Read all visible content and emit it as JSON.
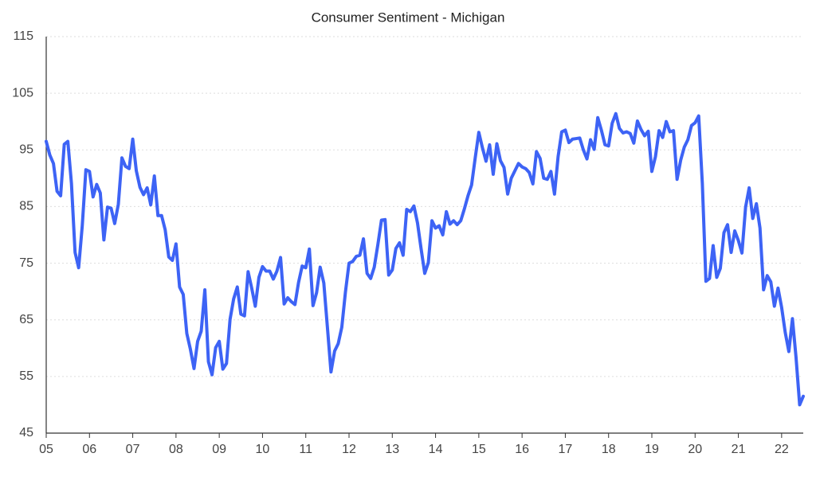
{
  "chart_data": {
    "type": "line",
    "title": "Consumer Sentiment - Michigan",
    "x": [
      2005,
      2005.083,
      2005.167,
      2005.25,
      2005.333,
      2005.417,
      2005.5,
      2005.583,
      2005.667,
      2005.75,
      2005.833,
      2005.917,
      2006,
      2006.083,
      2006.167,
      2006.25,
      2006.333,
      2006.417,
      2006.5,
      2006.583,
      2006.667,
      2006.75,
      2006.833,
      2006.917,
      2007,
      2007.083,
      2007.167,
      2007.25,
      2007.333,
      2007.417,
      2007.5,
      2007.583,
      2007.667,
      2007.75,
      2007.833,
      2007.917,
      2008,
      2008.083,
      2008.167,
      2008.25,
      2008.333,
      2008.417,
      2008.5,
      2008.583,
      2008.667,
      2008.75,
      2008.833,
      2008.917,
      2009,
      2009.083,
      2009.167,
      2009.25,
      2009.333,
      2009.417,
      2009.5,
      2009.583,
      2009.667,
      2009.75,
      2009.833,
      2009.917,
      2010,
      2010.083,
      2010.167,
      2010.25,
      2010.333,
      2010.417,
      2010.5,
      2010.583,
      2010.667,
      2010.75,
      2010.833,
      2010.917,
      2011,
      2011.083,
      2011.167,
      2011.25,
      2011.333,
      2011.417,
      2011.5,
      2011.583,
      2011.667,
      2011.75,
      2011.833,
      2011.917,
      2012,
      2012.083,
      2012.167,
      2012.25,
      2012.333,
      2012.417,
      2012.5,
      2012.583,
      2012.667,
      2012.75,
      2012.833,
      2012.917,
      2013,
      2013.083,
      2013.167,
      2013.25,
      2013.333,
      2013.417,
      2013.5,
      2013.583,
      2013.667,
      2013.75,
      2013.833,
      2013.917,
      2014,
      2014.083,
      2014.167,
      2014.25,
      2014.333,
      2014.417,
      2014.5,
      2014.583,
      2014.667,
      2014.75,
      2014.833,
      2014.917,
      2015,
      2015.083,
      2015.167,
      2015.25,
      2015.333,
      2015.417,
      2015.5,
      2015.583,
      2015.667,
      2015.75,
      2015.833,
      2015.917,
      2016,
      2016.083,
      2016.167,
      2016.25,
      2016.333,
      2016.417,
      2016.5,
      2016.583,
      2016.667,
      2016.75,
      2016.833,
      2016.917,
      2017,
      2017.083,
      2017.167,
      2017.25,
      2017.333,
      2017.417,
      2017.5,
      2017.583,
      2017.667,
      2017.75,
      2017.833,
      2017.917,
      2018,
      2018.083,
      2018.167,
      2018.25,
      2018.333,
      2018.417,
      2018.5,
      2018.583,
      2018.667,
      2018.75,
      2018.833,
      2018.917,
      2019,
      2019.083,
      2019.167,
      2019.25,
      2019.333,
      2019.417,
      2019.5,
      2019.583,
      2019.667,
      2019.75,
      2019.833,
      2019.917,
      2020,
      2020.083,
      2020.167,
      2020.25,
      2020.333,
      2020.417,
      2020.5,
      2020.583,
      2020.667,
      2020.75,
      2020.833,
      2020.917,
      2021,
      2021.083,
      2021.167,
      2021.25,
      2021.333,
      2021.417,
      2021.5,
      2021.583,
      2021.667,
      2021.75,
      2021.833,
      2021.917,
      2022,
      2022.083,
      2022.167,
      2022.25,
      2022.333,
      2022.417,
      2022.5
    ],
    "series": [
      {
        "color": "#3d63f5",
        "values": [
          96.5,
          94.1,
          92.6,
          87.7,
          86.9,
          96.0,
          96.5,
          89.1,
          76.9,
          74.2,
          81.6,
          91.5,
          91.2,
          86.7,
          88.9,
          87.4,
          79.1,
          84.9,
          84.7,
          82.0,
          85.4,
          93.6,
          92.1,
          91.7,
          96.9,
          91.3,
          88.4,
          87.1,
          88.3,
          85.3,
          90.4,
          83.4,
          83.4,
          80.9,
          76.1,
          75.5,
          78.4,
          70.8,
          69.5,
          62.6,
          59.8,
          56.4,
          61.2,
          63.0,
          70.3,
          57.6,
          55.3,
          60.1,
          61.2,
          56.3,
          57.3,
          65.1,
          68.7,
          70.8,
          66.0,
          65.7,
          73.5,
          70.6,
          67.4,
          72.5,
          74.4,
          73.6,
          73.6,
          72.2,
          73.6,
          76.0,
          67.8,
          68.9,
          68.2,
          67.7,
          71.6,
          74.5,
          74.2,
          77.5,
          67.5,
          69.8,
          74.3,
          71.5,
          63.7,
          55.8,
          59.5,
          60.8,
          63.7,
          69.9,
          75.0,
          75.3,
          76.2,
          76.4,
          79.3,
          73.2,
          72.3,
          74.3,
          78.3,
          82.6,
          82.7,
          72.9,
          73.8,
          77.6,
          78.6,
          76.4,
          84.5,
          84.1,
          85.1,
          82.1,
          77.5,
          73.2,
          75.1,
          82.5,
          81.2,
          81.6,
          80.0,
          84.1,
          81.9,
          82.5,
          81.8,
          82.5,
          84.6,
          86.9,
          88.8,
          93.6,
          98.1,
          95.4,
          93.0,
          95.9,
          90.7,
          96.1,
          93.1,
          91.9,
          87.2,
          90.0,
          91.3,
          92.6,
          92.0,
          91.7,
          91.0,
          89.0,
          94.7,
          93.5,
          90.0,
          89.8,
          91.2,
          87.2,
          93.8,
          98.2,
          98.5,
          96.3,
          96.9,
          97.0,
          97.1,
          95.0,
          93.4,
          96.8,
          95.1,
          100.7,
          98.5,
          95.9,
          95.7,
          99.7,
          101.4,
          98.8,
          98.0,
          98.2,
          97.9,
          96.2,
          100.1,
          98.6,
          97.5,
          98.3,
          91.2,
          93.8,
          98.4,
          97.2,
          100.0,
          98.2,
          98.4,
          89.8,
          93.2,
          95.5,
          96.8,
          99.3,
          99.8,
          101.0,
          89.1,
          71.8,
          72.3,
          78.1,
          72.5,
          74.1,
          80.4,
          81.8,
          76.9,
          80.7,
          79.0,
          76.8,
          84.9,
          88.3,
          82.9,
          85.5,
          81.2,
          70.3,
          72.8,
          71.7,
          67.4,
          70.6,
          67.2,
          62.8,
          59.4,
          65.2,
          58.4,
          50.0,
          51.5
        ]
      }
    ],
    "xlim": [
      2005,
      2022.5
    ],
    "xticks": [
      {
        "value": 2005,
        "label": "05"
      },
      {
        "value": 2006,
        "label": "06"
      },
      {
        "value": 2007,
        "label": "07"
      },
      {
        "value": 2008,
        "label": "08"
      },
      {
        "value": 2009,
        "label": "09"
      },
      {
        "value": 2010,
        "label": "10"
      },
      {
        "value": 2011,
        "label": "11"
      },
      {
        "value": 2012,
        "label": "12"
      },
      {
        "value": 2013,
        "label": "13"
      },
      {
        "value": 2014,
        "label": "14"
      },
      {
        "value": 2015,
        "label": "15"
      },
      {
        "value": 2016,
        "label": "16"
      },
      {
        "value": 2017,
        "label": "17"
      },
      {
        "value": 2018,
        "label": "18"
      },
      {
        "value": 2019,
        "label": "19"
      },
      {
        "value": 2020,
        "label": "20"
      },
      {
        "value": 2021,
        "label": "21"
      },
      {
        "value": 2022,
        "label": "22"
      }
    ],
    "ylim": [
      45,
      115
    ],
    "yticks": [
      45,
      55,
      65,
      75,
      85,
      95,
      105,
      115
    ],
    "grid": true
  }
}
